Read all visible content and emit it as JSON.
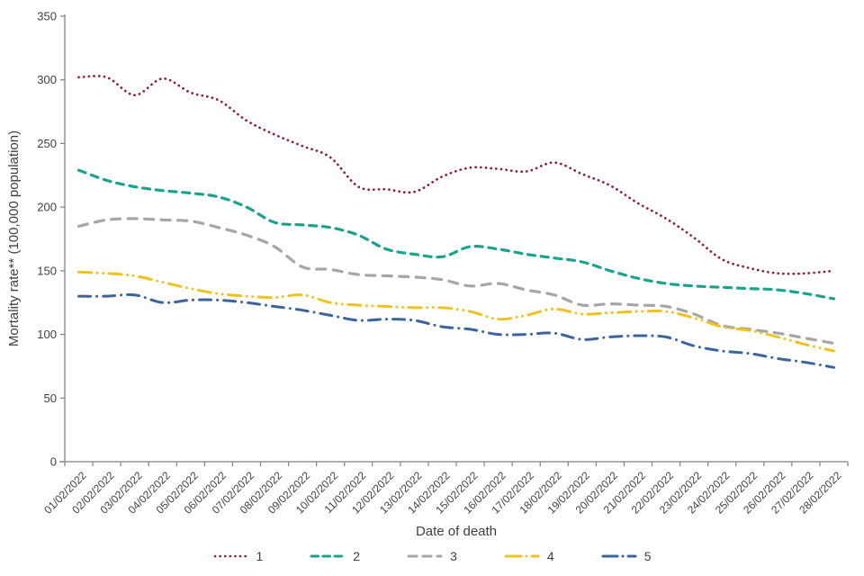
{
  "chart_data": {
    "type": "line",
    "title": "",
    "xlabel": "Date of death",
    "ylabel": "Mortality rate** (100,000 population)",
    "ylim": [
      0,
      350
    ],
    "yticks": [
      0,
      50,
      100,
      150,
      200,
      250,
      300,
      350
    ],
    "grid": false,
    "legend_position": "bottom",
    "axis_color": "#808080",
    "text_color": "#3f3f3f",
    "categories": [
      "01/02/2022",
      "02/02/2022",
      "03/02/2022",
      "04/02/2022",
      "05/02/2022",
      "06/02/2022",
      "07/02/2022",
      "08/02/2022",
      "09/02/2022",
      "10/02/2022",
      "11/02/2022",
      "12/02/2022",
      "13/02/2022",
      "14/02/2022",
      "15/02/2022",
      "16/02/2022",
      "17/02/2022",
      "18/02/2022",
      "19/02/2022",
      "20/02/2022",
      "21/02/2022",
      "22/02/2022",
      "23/02/2022",
      "24/02/2022",
      "25/02/2022",
      "26/02/2022",
      "27/02/2022",
      "28/02/2022"
    ],
    "series": [
      {
        "name": "1",
        "color": "#8e1b37",
        "style": "dotted",
        "values": [
          302,
          302,
          288,
          301,
          290,
          284,
          268,
          257,
          248,
          239,
          216,
          214,
          212,
          224,
          231,
          230,
          228,
          235,
          226,
          217,
          203,
          191,
          176,
          159,
          152,
          148,
          148,
          150
        ]
      },
      {
        "name": "2",
        "color": "#18a48c",
        "style": "dashed",
        "values": [
          229,
          221,
          216,
          213,
          211,
          208,
          200,
          188,
          186,
          184,
          178,
          167,
          163,
          161,
          169,
          167,
          163,
          160,
          157,
          150,
          144,
          140,
          138,
          137,
          136,
          135,
          132,
          128
        ]
      },
      {
        "name": "3",
        "color": "#a6a6a6",
        "style": "long-dashed",
        "values": [
          185,
          190,
          191,
          190,
          189,
          184,
          178,
          169,
          153,
          151,
          147,
          146,
          145,
          143,
          138,
          140,
          135,
          131,
          123,
          124,
          123,
          122,
          116,
          107,
          104,
          101,
          97,
          93
        ]
      },
      {
        "name": "4",
        "color": "#eec31e",
        "style": "dash-dot-dot",
        "values": [
          149,
          148,
          146,
          141,
          136,
          132,
          130,
          129,
          131,
          125,
          123,
          122,
          121,
          121,
          118,
          112,
          115,
          120,
          116,
          117,
          118,
          118,
          113,
          106,
          103,
          98,
          92,
          87
        ]
      },
      {
        "name": "5",
        "color": "#3a64a0",
        "style": "dash-dot",
        "values": [
          130,
          130,
          131,
          125,
          127,
          127,
          125,
          122,
          119,
          115,
          111,
          112,
          111,
          106,
          104,
          100,
          100,
          101,
          96,
          98,
          99,
          98,
          91,
          87,
          85,
          81,
          78,
          74
        ]
      }
    ]
  }
}
